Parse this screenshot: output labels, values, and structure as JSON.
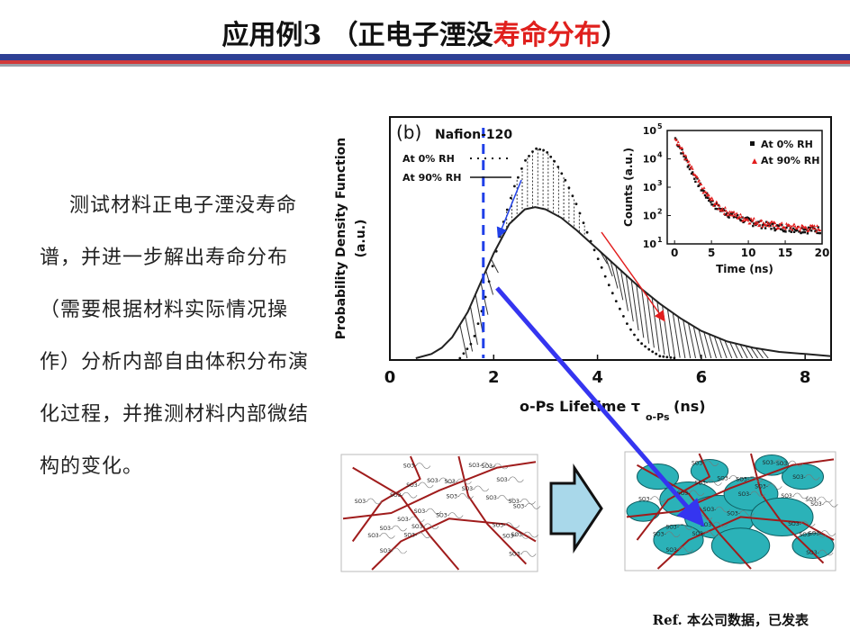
{
  "slide": {
    "title_black": "应用例3 （正电子湮没",
    "title_red": "寿命分布",
    "title_close": "）",
    "description": "测试材料正电子湮没寿命谱，并进一步解出寿命分布（需要根据材料实际情况操作）分析内部自由体积分布演化过程，并推测材料内部微结构的变化。",
    "ref": "Ref.  本公司数据，已发表"
  },
  "chart_data": [
    {
      "type": "area",
      "panel_label": "(b)",
      "title": "Nafion-120",
      "xlabel": "o-Ps Lifetime τ",
      "xlabel_sub": "o-Ps",
      "xlabel_unit": "(ns)",
      "ylabel": "Probability Density Function",
      "ylabel_unit": "(a.u.)",
      "xlim": [
        0,
        8.5
      ],
      "xticks": [
        "0",
        "2",
        "4",
        "6",
        "8"
      ],
      "xtick_values": [
        0,
        2,
        4,
        6,
        8
      ],
      "marker_line_x": 1.8,
      "legend": [
        {
          "label": "At 0% RH",
          "style": "dotted"
        },
        {
          "label": "At 90% RH",
          "style": "solid"
        }
      ],
      "series": [
        {
          "name": "At 0% RH",
          "x": [
            1.35,
            1.6,
            1.8,
            2.0,
            2.2,
            2.4,
            2.6,
            2.8,
            3.0,
            3.2,
            3.4,
            3.6,
            3.8,
            4.0,
            4.2,
            4.4,
            4.6,
            4.8,
            5.0,
            5.2,
            5.5
          ],
          "values": [
            0.0,
            0.08,
            0.25,
            0.46,
            0.66,
            0.82,
            0.94,
            1.0,
            0.99,
            0.93,
            0.84,
            0.73,
            0.6,
            0.48,
            0.36,
            0.25,
            0.15,
            0.08,
            0.04,
            0.01,
            0.0
          ]
        },
        {
          "name": "At 90% RH",
          "x": [
            0.5,
            0.8,
            1.0,
            1.2,
            1.5,
            1.8,
            2.0,
            2.3,
            2.6,
            2.8,
            3.0,
            3.3,
            3.6,
            4.0,
            4.4,
            4.8,
            5.2,
            5.6,
            6.0,
            6.5,
            7.0,
            7.5,
            8.0,
            8.5
          ],
          "values": [
            0.0,
            0.02,
            0.05,
            0.1,
            0.22,
            0.39,
            0.5,
            0.64,
            0.71,
            0.72,
            0.71,
            0.67,
            0.61,
            0.52,
            0.43,
            0.34,
            0.26,
            0.19,
            0.13,
            0.08,
            0.05,
            0.03,
            0.02,
            0.01
          ]
        }
      ]
    },
    {
      "type": "scatter",
      "xlabel": "Time (ns)",
      "ylabel": "Counts (a.u.)",
      "log_y": true,
      "xlim": [
        -1,
        20
      ],
      "ylim": [
        10,
        100000
      ],
      "xticks": [
        "0",
        "5",
        "10",
        "15",
        "20"
      ],
      "xtick_values": [
        0,
        5,
        10,
        15,
        20
      ],
      "yticks": [
        "10",
        "10",
        "10",
        "10",
        "10"
      ],
      "ytick_exps": [
        "1",
        "2",
        "3",
        "4",
        "5"
      ],
      "ytick_values": [
        10,
        100,
        1000,
        10000,
        100000
      ],
      "legend": [
        {
          "label": "At 0% RH",
          "color": "#111111"
        },
        {
          "label": "At 90% RH",
          "color": "#e21d1d"
        }
      ]
    }
  ],
  "illustration": {
    "ion_label": "SO3-",
    "colors": {
      "chain": "#a01c1c",
      "water": "#2bb2b8",
      "arrow": "#a9d8ea"
    }
  }
}
